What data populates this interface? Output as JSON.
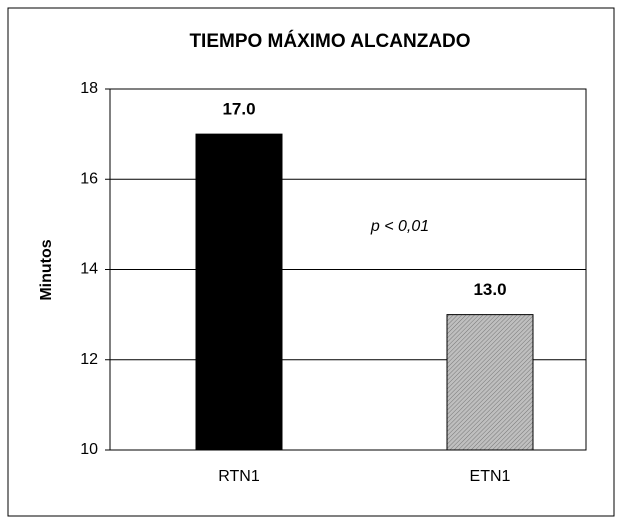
{
  "chart_data": {
    "type": "bar",
    "title": "TIEMPO MÁXIMO ALCANZADO",
    "y_label": "Minutos",
    "categories": [
      "RTN1",
      "ETN1"
    ],
    "values": [
      17,
      13
    ],
    "value_labels": [
      "17.0",
      "13.0"
    ],
    "colors": [
      "#000000",
      "#bfbfbf"
    ],
    "annotation": "p < 0,01",
    "ylim": [
      10,
      18
    ],
    "yticks": [
      10,
      12,
      14,
      16,
      18
    ],
    "grid": true
  }
}
